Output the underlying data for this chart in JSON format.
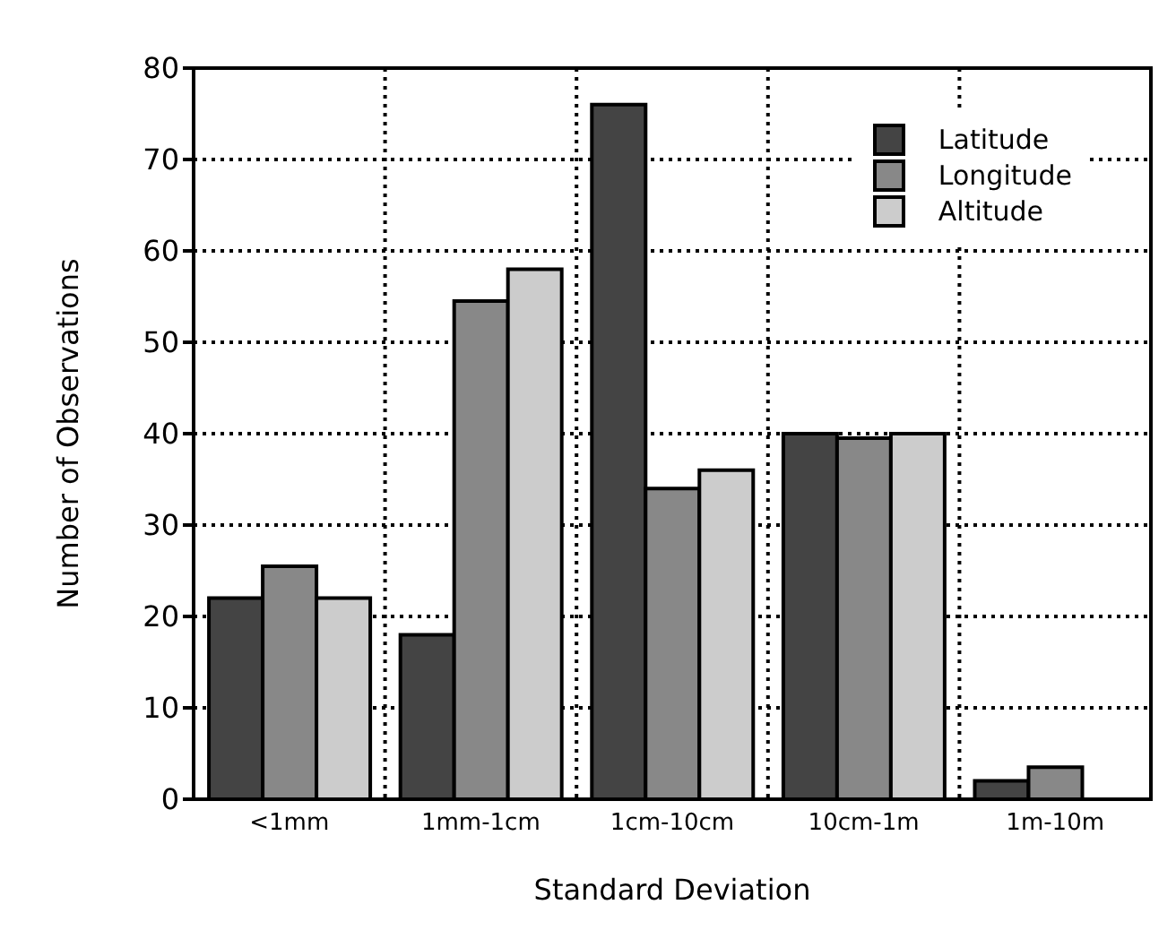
{
  "chart_data": {
    "type": "bar",
    "xlabel": "Standard Deviation",
    "ylabel": "Number of Observations",
    "categories": [
      "<1mm",
      "1mm-1cm",
      "1cm-10cm",
      "10cm-1m",
      "1m-10m"
    ],
    "series": [
      {
        "name": "Latitude",
        "color": "#444444",
        "values": [
          22,
          18,
          76,
          40,
          2
        ]
      },
      {
        "name": "Longitude",
        "color": "#888888",
        "values": [
          25.5,
          54.5,
          34,
          39.5,
          3.5
        ]
      },
      {
        "name": "Altitude",
        "color": "#cccccc",
        "values": [
          22,
          58,
          36,
          40,
          null
        ]
      }
    ],
    "ylim": [
      0,
      80
    ],
    "yticks": [
      0,
      10,
      20,
      30,
      40,
      50,
      60,
      70,
      80
    ],
    "grid": true,
    "legend": "top right"
  }
}
